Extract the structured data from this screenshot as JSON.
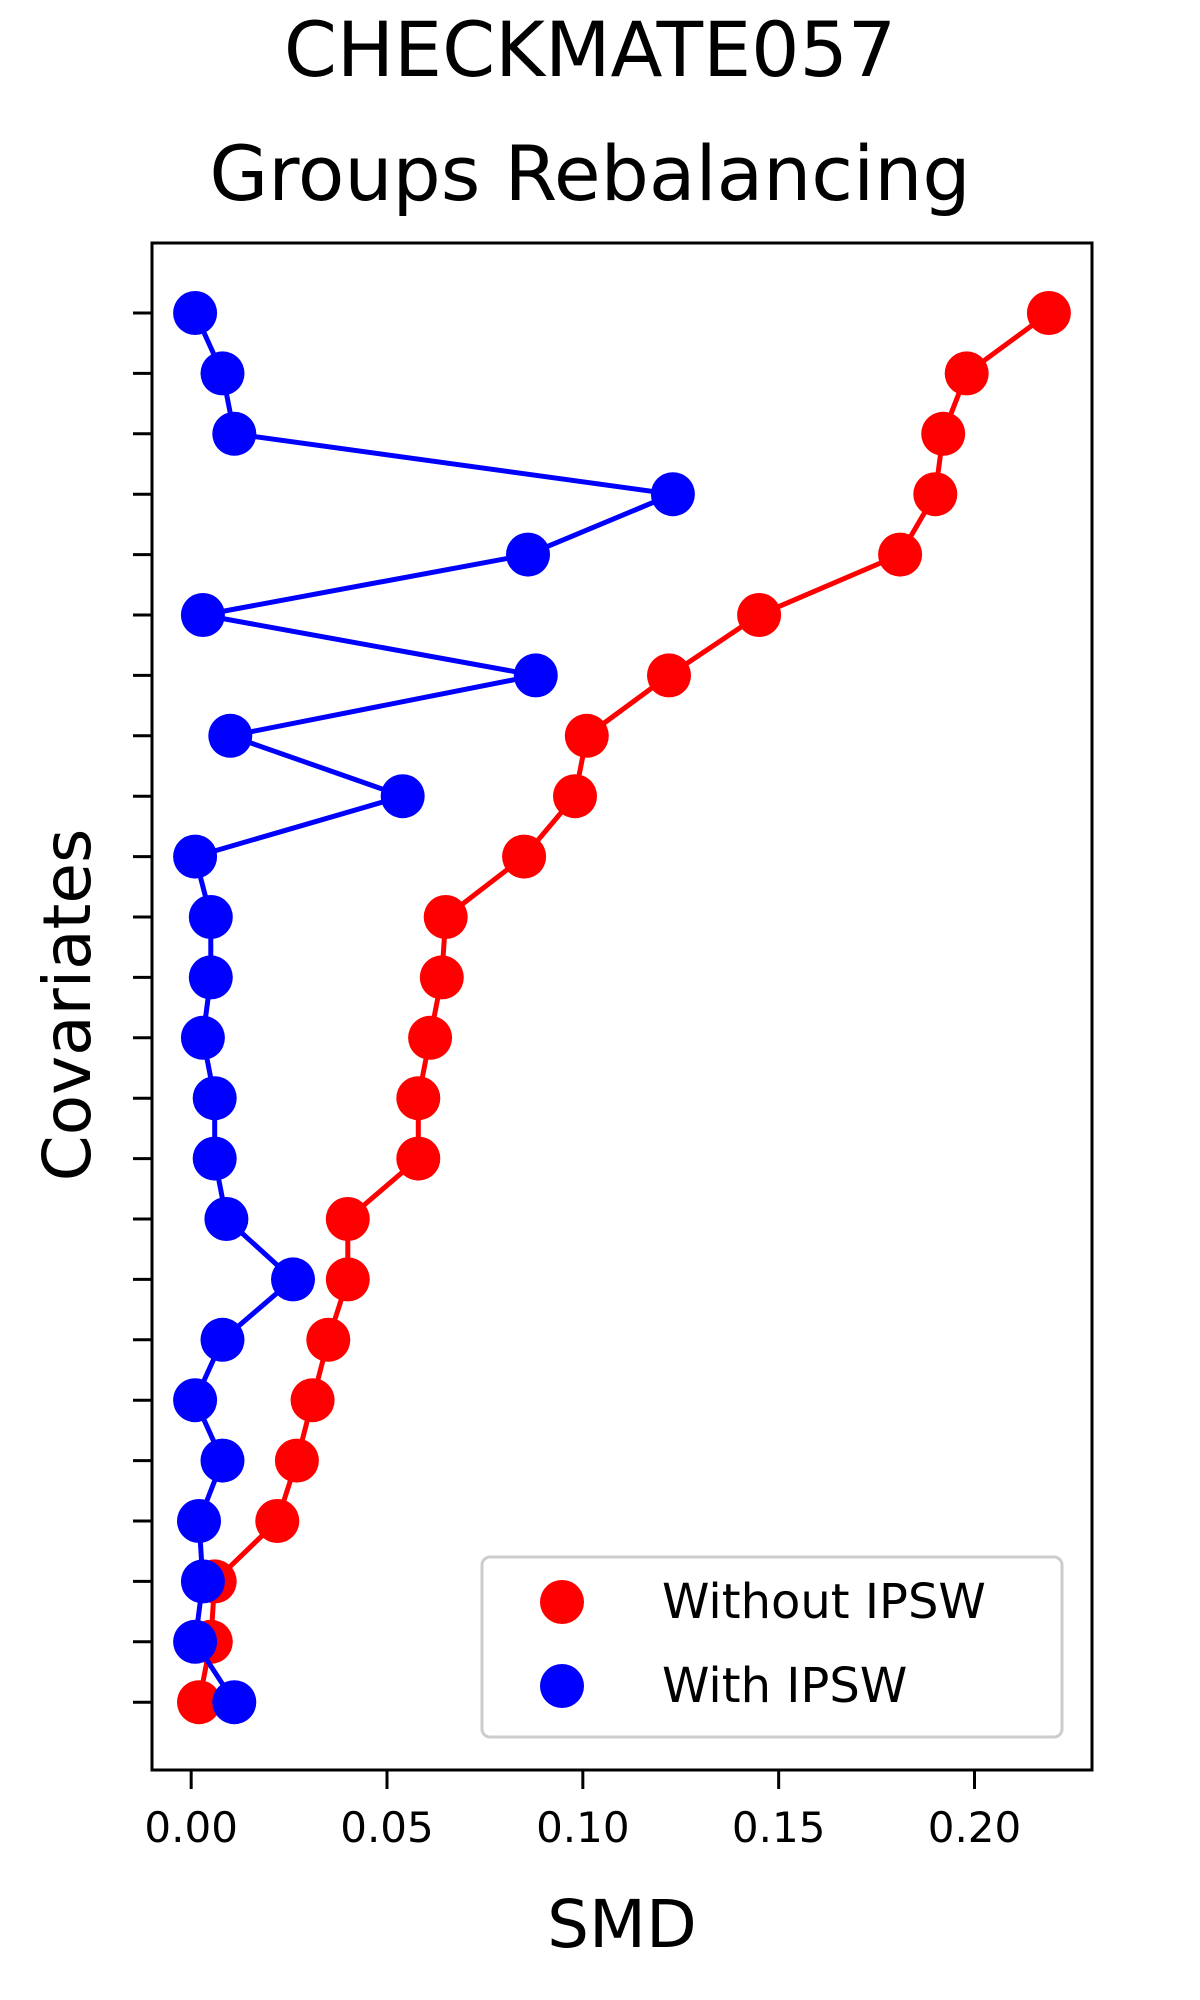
{
  "chart_data": {
    "type": "line",
    "title_lines": [
      "CHECKMATE057",
      "Groups Rebalancing"
    ],
    "xlabel": "SMD",
    "ylabel": "Covariates",
    "xlim": [
      -0.01,
      0.23
    ],
    "xticks": [
      "0.00",
      "0.05",
      "0.10",
      "0.15",
      "0.20"
    ],
    "xtick_values": [
      0.0,
      0.05,
      0.1,
      0.15,
      0.2
    ],
    "y_categories_count": 24,
    "grid": false,
    "legend_position": "bottom-right",
    "series": [
      {
        "name": "Without IPSW",
        "color": "#ff0000",
        "values": [
          0.219,
          0.198,
          0.192,
          0.19,
          0.181,
          0.145,
          0.122,
          0.101,
          0.098,
          0.085,
          0.065,
          0.064,
          0.061,
          0.058,
          0.058,
          0.04,
          0.04,
          0.035,
          0.031,
          0.027,
          0.022,
          0.006,
          0.005,
          0.002
        ]
      },
      {
        "name": "With IPSW",
        "color": "#0000ff",
        "values": [
          0.001,
          0.008,
          0.011,
          0.123,
          0.086,
          0.003,
          0.088,
          0.01,
          0.054,
          0.001,
          0.005,
          0.005,
          0.003,
          0.006,
          0.006,
          0.009,
          0.026,
          0.008,
          0.001,
          0.008,
          0.002,
          0.003,
          0.001,
          0.011
        ]
      }
    ]
  }
}
